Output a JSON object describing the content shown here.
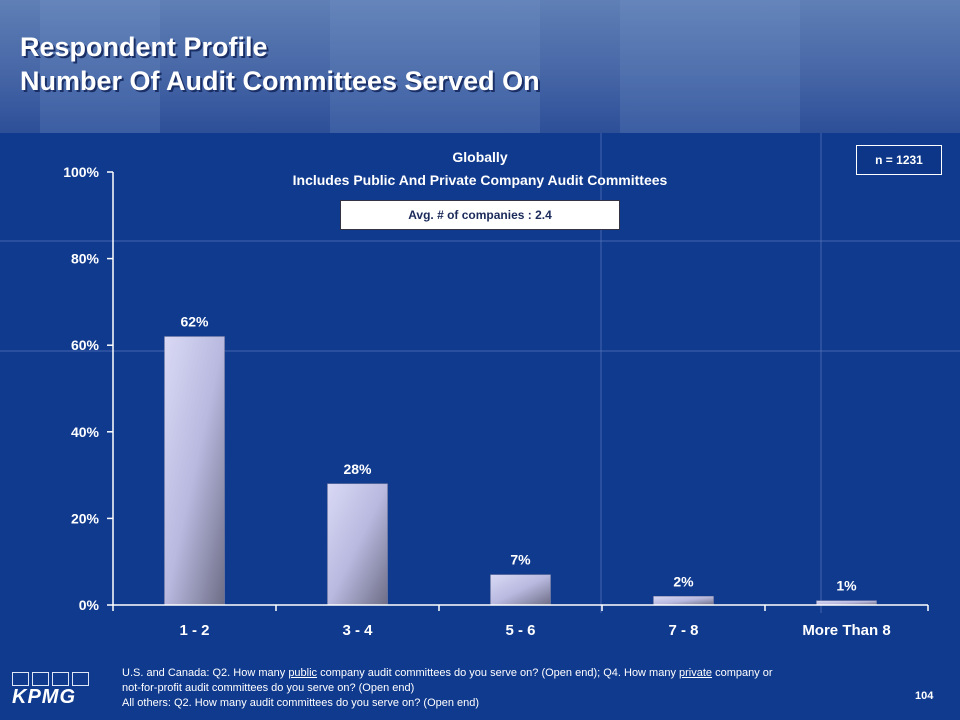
{
  "header": {
    "title_line1": "Respondent Profile",
    "title_line2": "Number Of Audit Committees Served On"
  },
  "sample": {
    "n_label": "n = 1231"
  },
  "average": {
    "label": "Avg. # of companies : 2.4"
  },
  "footnote": {
    "line1_a": "U.S. and Canada: Q2. How many ",
    "line1_b": "public",
    "line1_c": " company audit committees do you serve on? (Open end); Q4. How many ",
    "line1_d": "private",
    "line1_e": " company or",
    "line2": "not-for-profit audit committees do you serve on? (Open end)",
    "line3": "All others: Q2. How many audit committees do you serve on? (Open end)"
  },
  "page_number": "104",
  "logo": {
    "text": "KPMG"
  },
  "colors": {
    "background": "#103a8e",
    "bar_light": "#d6d6f2",
    "bar_dark": "#6d6d86",
    "axis": "#ffffff"
  },
  "chart_data": {
    "type": "bar",
    "title": "Globally",
    "subtitle": "Includes Public And Private Company Audit Committees",
    "categories": [
      "1 - 2",
      "3 - 4",
      "5 - 6",
      "7 - 8",
      "More Than 8"
    ],
    "values": [
      62,
      28,
      7,
      2,
      1
    ],
    "data_labels": [
      "62%",
      "28%",
      "7%",
      "2%",
      "1%"
    ],
    "y_ticks": [
      0,
      20,
      40,
      60,
      80,
      100
    ],
    "y_tick_labels": [
      "0%",
      "20%",
      "40%",
      "60%",
      "80%",
      "100%"
    ],
    "ylim": [
      0,
      100
    ],
    "xlabel": "",
    "ylabel": "",
    "grid": false,
    "legend": false
  }
}
